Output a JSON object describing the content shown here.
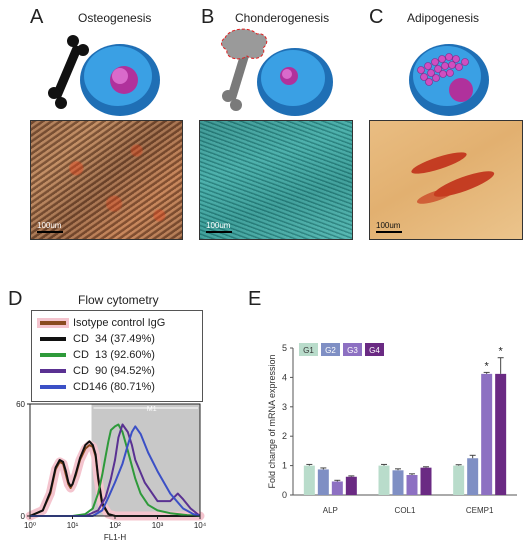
{
  "panels": {
    "A": {
      "letter": "A",
      "title": "Osteogenesis",
      "scale": "100um"
    },
    "B": {
      "letter": "B",
      "title": "Chonderogenesis",
      "scale": "100um"
    },
    "C": {
      "letter": "C",
      "title": "Adipogenesis",
      "scale": "100um"
    },
    "D": {
      "letter": "D",
      "title": "Flow cytometry"
    },
    "E": {
      "letter": "E"
    }
  },
  "icons": {
    "A": [
      "bone-icon",
      "cell-icon"
    ],
    "B": [
      "bone-icon",
      "cartilage-icon",
      "cell-icon"
    ],
    "C": [
      "lipid-droplets-icon",
      "cell-icon"
    ]
  },
  "colors": {
    "osteo_stain": "#c86a3a",
    "chondro_stain": "#2f9a96",
    "adipo_bg": "#e7b67a",
    "cell_blue": "#2f8fd6",
    "nucleus_pink": "#c04fb6"
  },
  "chart_data": [
    {
      "type": "line",
      "title": "Flow cytometry",
      "xlabel": "FL1-H",
      "ylabel": "",
      "x_scale": "log",
      "xlim": [
        1,
        10000
      ],
      "ylim": [
        0,
        60
      ],
      "x_ticks": [
        1,
        10,
        100,
        1000,
        10000
      ],
      "x_tick_labels": [
        "10⁰",
        "10¹",
        "10²",
        "10³",
        "10⁴"
      ],
      "y_ticks": [
        0,
        60
      ],
      "gate": {
        "label": "M1",
        "range": [
          28,
          10000
        ]
      },
      "legend_position": "top",
      "series": [
        {
          "name": "Isotype control IgG",
          "color": "#8a4a1e",
          "fill": "#f4c4ce",
          "points": [
            [
              1,
              0
            ],
            [
              2,
              3
            ],
            [
              3,
              12
            ],
            [
              4,
              25
            ],
            [
              5,
              29
            ],
            [
              6,
              28
            ],
            [
              7,
              22
            ],
            [
              8,
              17
            ],
            [
              9,
              15
            ],
            [
              10,
              17
            ],
            [
              12,
              22
            ],
            [
              15,
              30
            ],
            [
              20,
              36
            ],
            [
              25,
              38
            ],
            [
              30,
              37
            ],
            [
              35,
              32
            ],
            [
              40,
              20
            ],
            [
              50,
              6
            ],
            [
              70,
              1
            ],
            [
              100,
              0
            ],
            [
              10000,
              0
            ]
          ]
        },
        {
          "name": "CD  34 (37.49%)",
          "color": "#111111",
          "points": [
            [
              1,
              0
            ],
            [
              2,
              3
            ],
            [
              3,
              13
            ],
            [
              4,
              26
            ],
            [
              5,
              30
            ],
            [
              6,
              29
            ],
            [
              7,
              24
            ],
            [
              8,
              18
            ],
            [
              9,
              16
            ],
            [
              10,
              17
            ],
            [
              12,
              23
            ],
            [
              15,
              31
            ],
            [
              20,
              38
            ],
            [
              25,
              40
            ],
            [
              30,
              38
            ],
            [
              35,
              33
            ],
            [
              40,
              21
            ],
            [
              50,
              7
            ],
            [
              70,
              1
            ],
            [
              100,
              0
            ],
            [
              10000,
              0
            ]
          ]
        },
        {
          "name": "CD  13 (92.60%)",
          "color": "#2e9a3a",
          "points": [
            [
              1,
              0
            ],
            [
              10,
              0
            ],
            [
              20,
              1
            ],
            [
              30,
              4
            ],
            [
              40,
              12
            ],
            [
              50,
              22
            ],
            [
              60,
              32
            ],
            [
              70,
              40
            ],
            [
              80,
              46
            ],
            [
              100,
              48
            ],
            [
              120,
              49
            ],
            [
              150,
              45
            ],
            [
              200,
              35
            ],
            [
              300,
              20
            ],
            [
              400,
              12
            ],
            [
              600,
              6
            ],
            [
              1000,
              3
            ],
            [
              2000,
              1.5
            ],
            [
              5000,
              0.5
            ],
            [
              10000,
              0
            ]
          ]
        },
        {
          "name": "CD  90 (94.52%)",
          "color": "#5a3192",
          "points": [
            [
              1,
              0
            ],
            [
              20,
              0
            ],
            [
              40,
              3
            ],
            [
              60,
              10
            ],
            [
              80,
              20
            ],
            [
              100,
              30
            ],
            [
              120,
              42
            ],
            [
              150,
              49
            ],
            [
              200,
              45
            ],
            [
              250,
              38
            ],
            [
              300,
              30
            ],
            [
              500,
              18
            ],
            [
              1000,
              8
            ],
            [
              2000,
              8
            ],
            [
              3000,
              12
            ],
            [
              4000,
              9
            ],
            [
              6000,
              4
            ],
            [
              10000,
              0
            ]
          ]
        },
        {
          "name": "CD146 (80.71%)",
          "color": "#3b50c6",
          "points": [
            [
              1,
              0
            ],
            [
              30,
              0
            ],
            [
              50,
              3
            ],
            [
              70,
              10
            ],
            [
              100,
              18
            ],
            [
              150,
              28
            ],
            [
              200,
              38
            ],
            [
              250,
              45
            ],
            [
              300,
              48
            ],
            [
              400,
              44
            ],
            [
              600,
              34
            ],
            [
              1000,
              24
            ],
            [
              2000,
              12
            ],
            [
              4000,
              4
            ],
            [
              7000,
              1
            ],
            [
              10000,
              0
            ]
          ]
        }
      ]
    },
    {
      "type": "bar",
      "categories": [
        "ALP",
        "COL1",
        "CEMP1"
      ],
      "ylabel": "Fold change of mRNA expression",
      "ylim": [
        0,
        5
      ],
      "y_ticks": [
        0,
        1,
        2,
        3,
        4,
        5
      ],
      "legend_position": "top-left",
      "series": [
        {
          "name": "G1",
          "color": "#b9dccb",
          "values": [
            1.0,
            1.0,
            1.0
          ],
          "errors": [
            0.04,
            0.04,
            0.03
          ]
        },
        {
          "name": "G2",
          "color": "#7f8fc4",
          "values": [
            0.87,
            0.84,
            1.25
          ],
          "errors": [
            0.05,
            0.05,
            0.1
          ]
        },
        {
          "name": "G3",
          "color": "#8d70c2",
          "values": [
            0.46,
            0.68,
            4.12
          ],
          "errors": [
            0.04,
            0.04,
            0.05
          ]
        },
        {
          "name": "G4",
          "color": "#6a2a83",
          "values": [
            0.62,
            0.93,
            4.12
          ],
          "errors": [
            0.03,
            0.03,
            0.55
          ]
        }
      ],
      "annotations": [
        {
          "category": "CEMP1",
          "series": "G3",
          "text": "*"
        },
        {
          "category": "CEMP1",
          "series": "G4",
          "text": "*"
        }
      ]
    }
  ]
}
